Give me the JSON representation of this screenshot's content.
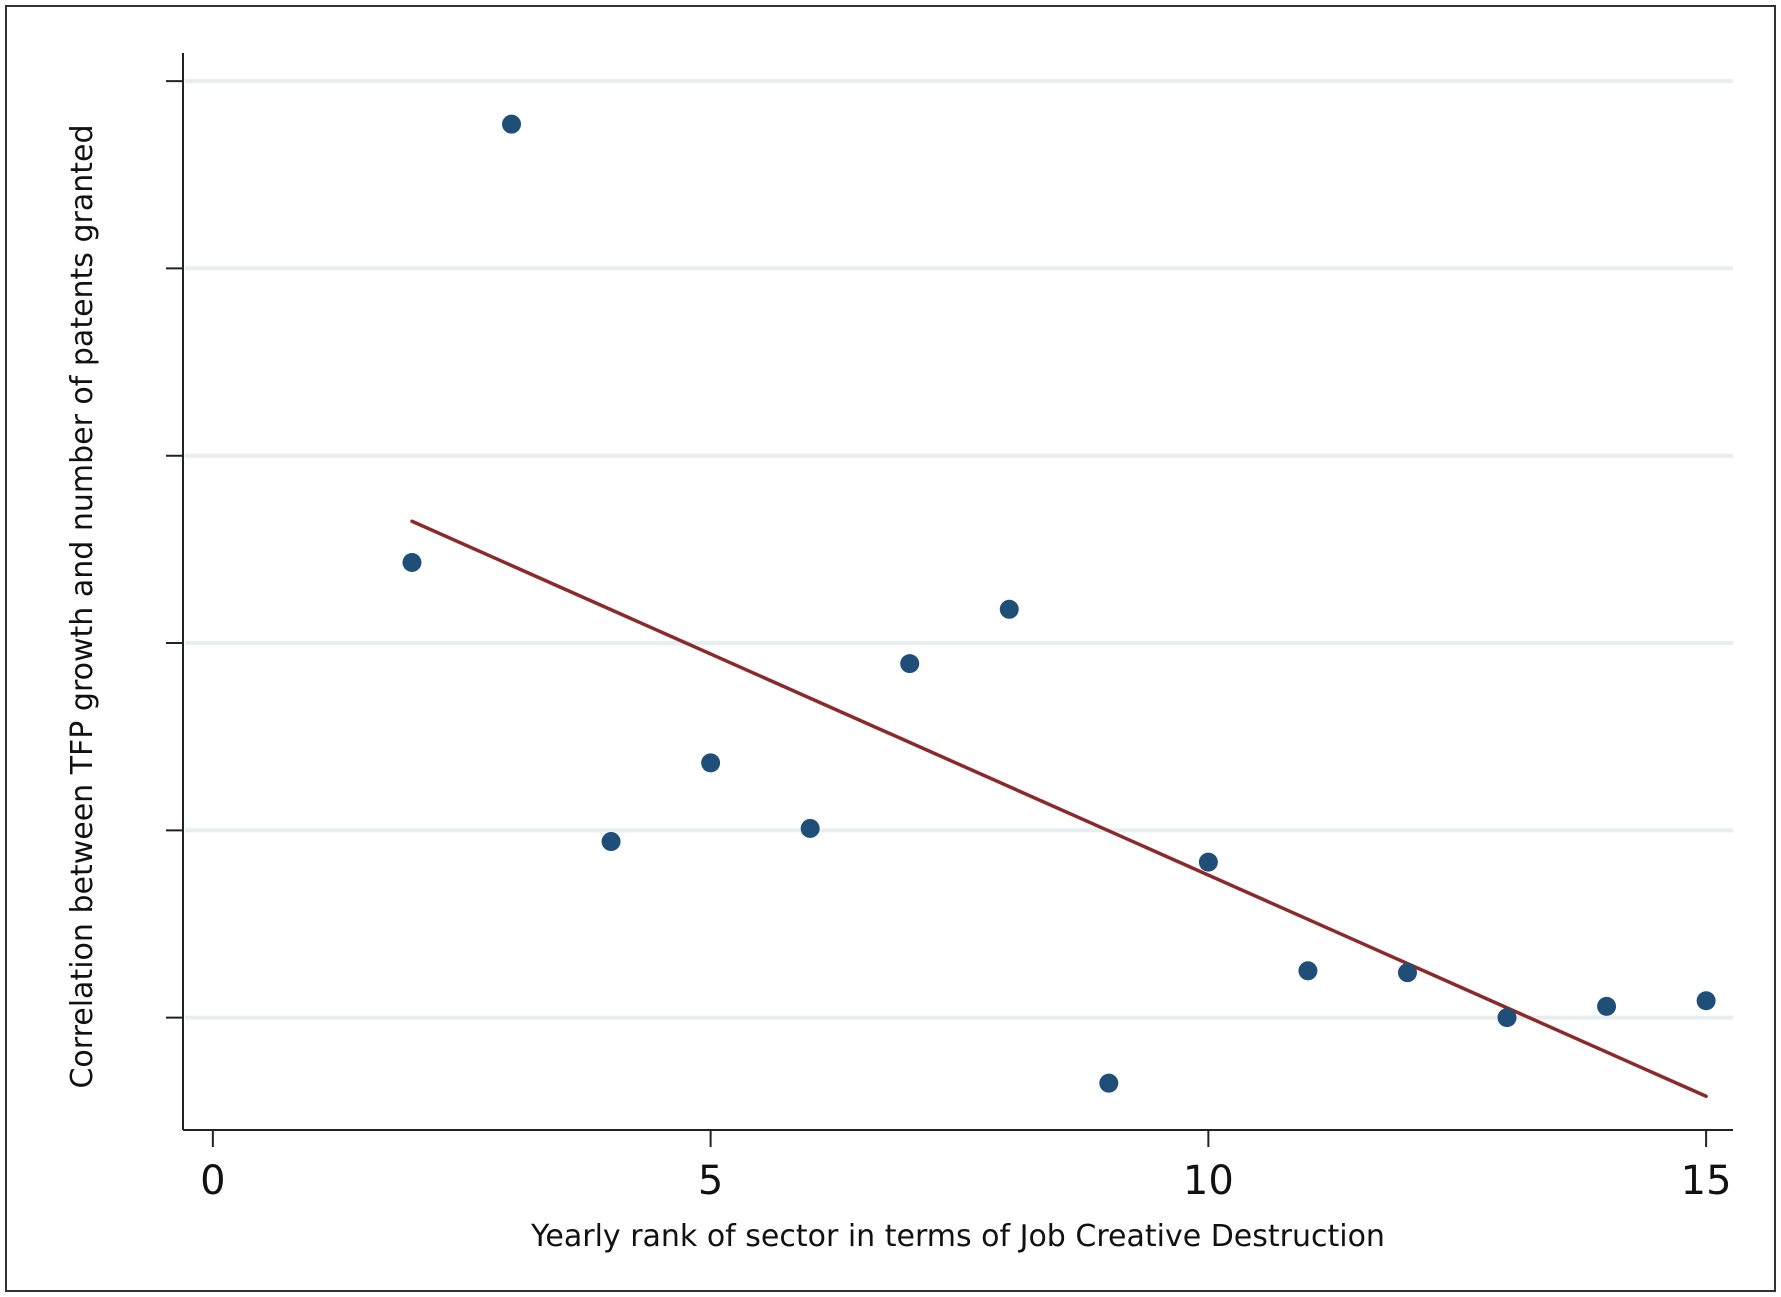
{
  "chart_data": {
    "type": "scatter",
    "title": "",
    "xlabel": "Yearly rank of sector in terms of Job Creative Destruction",
    "ylabel": "Correlation between TFP growth and number of patents granted",
    "xlim": [
      -0.3,
      15.27
    ],
    "ylim": [
      -0.6,
      5.15
    ],
    "xticks": [
      0,
      5,
      10,
      15
    ],
    "xtick_labels": [
      "0",
      "5",
      "10",
      "15"
    ],
    "yticks": [
      0,
      1,
      2,
      3,
      4,
      5
    ],
    "ytick_labels": [
      "",
      "",
      "",
      "",
      "",
      ""
    ],
    "grid": "horizontal",
    "legend": "none",
    "points": {
      "x": [
        2,
        3,
        4,
        5,
        6,
        7,
        8,
        9,
        10,
        11,
        12,
        13,
        14,
        15
      ],
      "y": [
        2.43,
        4.77,
        0.94,
        1.36,
        1.01,
        1.89,
        2.18,
        -0.35,
        0.83,
        0.25,
        0.24,
        0.0,
        0.06,
        0.09
      ]
    },
    "fit_line": {
      "x": [
        2,
        15
      ],
      "y": [
        2.65,
        -0.42
      ]
    },
    "colors": {
      "points": "#1f4e79",
      "fit_line": "#8b2a2a",
      "grid": "#e6eef0",
      "axis": "#222222"
    }
  }
}
